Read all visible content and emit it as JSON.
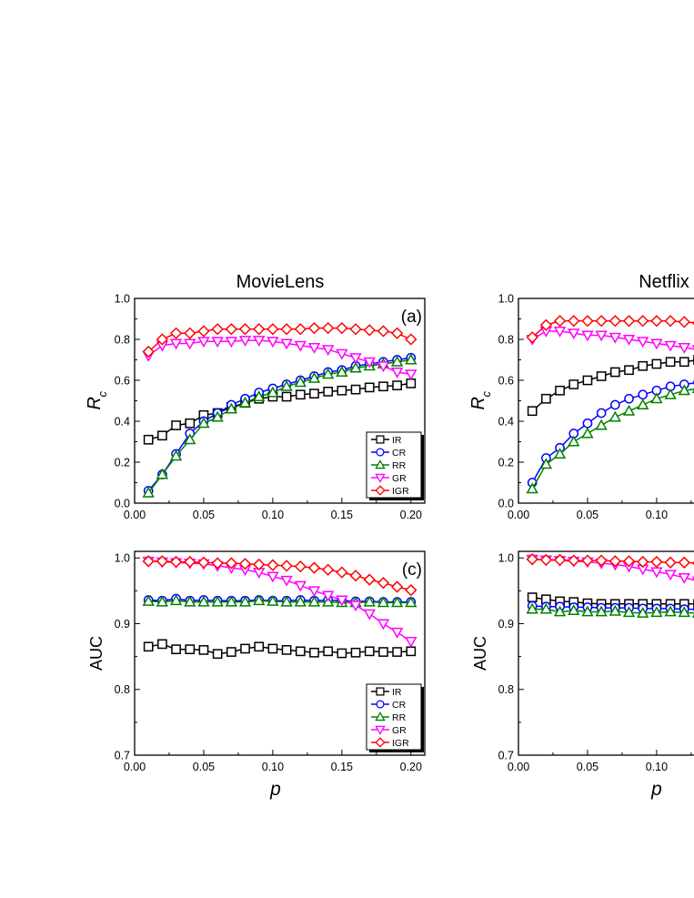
{
  "figure": {
    "columns": [
      {
        "title": "MovieLens"
      },
      {
        "title": "Netflix"
      }
    ],
    "x_axis_label": "p"
  },
  "series_style": {
    "IR": {
      "color": "#000000",
      "marker": "square"
    },
    "CR": {
      "color": "#0000ff",
      "marker": "circle"
    },
    "RR": {
      "color": "#008000",
      "marker": "triangle-up"
    },
    "GR": {
      "color": "#ff00ff",
      "marker": "triangle-down"
    },
    "IGR": {
      "color": "#ff0000",
      "marker": "diamond"
    }
  },
  "chart_data": [
    {
      "type": "line",
      "dataset": "MovieLens",
      "panel_label": "(a)",
      "xlabel": "p",
      "ylabel": "R_c",
      "xlim": [
        0.0,
        0.21
      ],
      "ylim": [
        0.0,
        1.0
      ],
      "x_ticks": [
        "0.00",
        "0.05",
        "0.10",
        "0.15",
        "0.20"
      ],
      "y_ticks": [
        "0.0",
        "0.2",
        "0.4",
        "0.6",
        "0.8",
        "1.0"
      ],
      "legend": [
        "IR",
        "CR",
        "RR",
        "GR",
        "IGR"
      ],
      "legend_position": "bottom-right",
      "x": [
        0.01,
        0.02,
        0.03,
        0.04,
        0.05,
        0.06,
        0.07,
        0.08,
        0.09,
        0.1,
        0.11,
        0.12,
        0.13,
        0.14,
        0.15,
        0.16,
        0.17,
        0.18,
        0.19,
        0.2
      ],
      "series": [
        {
          "name": "IR",
          "values": [
            0.31,
            0.33,
            0.38,
            0.39,
            0.43,
            0.44,
            0.47,
            0.49,
            0.51,
            0.52,
            0.52,
            0.53,
            0.535,
            0.545,
            0.55,
            0.555,
            0.565,
            0.57,
            0.575,
            0.585
          ]
        },
        {
          "name": "CR",
          "values": [
            0.06,
            0.14,
            0.24,
            0.34,
            0.4,
            0.44,
            0.48,
            0.51,
            0.54,
            0.56,
            0.58,
            0.6,
            0.62,
            0.64,
            0.65,
            0.67,
            0.68,
            0.69,
            0.7,
            0.71
          ]
        },
        {
          "name": "RR",
          "values": [
            0.05,
            0.14,
            0.23,
            0.31,
            0.39,
            0.42,
            0.46,
            0.49,
            0.52,
            0.54,
            0.57,
            0.59,
            0.61,
            0.63,
            0.64,
            0.66,
            0.67,
            0.68,
            0.69,
            0.7
          ]
        },
        {
          "name": "GR",
          "values": [
            0.72,
            0.77,
            0.78,
            0.78,
            0.79,
            0.79,
            0.79,
            0.795,
            0.795,
            0.79,
            0.78,
            0.77,
            0.76,
            0.75,
            0.73,
            0.71,
            0.69,
            0.67,
            0.64,
            0.63
          ]
        },
        {
          "name": "IGR",
          "values": [
            0.74,
            0.8,
            0.83,
            0.83,
            0.84,
            0.85,
            0.85,
            0.85,
            0.85,
            0.85,
            0.85,
            0.85,
            0.855,
            0.855,
            0.855,
            0.85,
            0.845,
            0.84,
            0.83,
            0.8
          ]
        }
      ]
    },
    {
      "type": "line",
      "dataset": "MovieLens",
      "panel_label": "(c)",
      "xlabel": "p",
      "ylabel": "AUC",
      "xlim": [
        0.0,
        0.21
      ],
      "ylim": [
        0.7,
        1.01
      ],
      "x_ticks": [
        "0.00",
        "0.05",
        "0.10",
        "0.15",
        "0.20"
      ],
      "y_ticks": [
        "0.7",
        "0.8",
        "0.9",
        "1.0"
      ],
      "legend": [
        "IR",
        "CR",
        "RR",
        "GR",
        "IGR"
      ],
      "legend_position": "bottom-right",
      "x": [
        0.01,
        0.02,
        0.03,
        0.04,
        0.05,
        0.06,
        0.07,
        0.08,
        0.09,
        0.1,
        0.11,
        0.12,
        0.13,
        0.14,
        0.15,
        0.16,
        0.17,
        0.18,
        0.19,
        0.2
      ],
      "series": [
        {
          "name": "IR",
          "values": [
            0.865,
            0.869,
            0.861,
            0.861,
            0.86,
            0.854,
            0.857,
            0.862,
            0.865,
            0.862,
            0.86,
            0.858,
            0.856,
            0.858,
            0.855,
            0.856,
            0.858,
            0.857,
            0.857,
            0.858
          ]
        },
        {
          "name": "CR",
          "values": [
            0.936,
            0.935,
            0.938,
            0.935,
            0.936,
            0.935,
            0.935,
            0.935,
            0.936,
            0.935,
            0.935,
            0.936,
            0.935,
            0.936,
            0.935,
            0.934,
            0.934,
            0.933,
            0.933,
            0.933
          ]
        },
        {
          "name": "RR",
          "values": [
            0.934,
            0.933,
            0.935,
            0.933,
            0.933,
            0.933,
            0.933,
            0.933,
            0.935,
            0.934,
            0.933,
            0.933,
            0.933,
            0.933,
            0.932,
            0.932,
            0.933,
            0.932,
            0.932,
            0.932
          ]
        },
        {
          "name": "GR",
          "values": [
            0.995,
            0.994,
            0.993,
            0.992,
            0.991,
            0.988,
            0.985,
            0.982,
            0.978,
            0.972,
            0.966,
            0.958,
            0.95,
            0.943,
            0.936,
            0.928,
            0.915,
            0.9,
            0.887,
            0.873
          ]
        },
        {
          "name": "IGR",
          "values": [
            0.995,
            0.995,
            0.994,
            0.994,
            0.993,
            0.992,
            0.992,
            0.991,
            0.99,
            0.989,
            0.988,
            0.987,
            0.985,
            0.982,
            0.978,
            0.973,
            0.967,
            0.962,
            0.956,
            0.951
          ]
        }
      ]
    },
    {
      "type": "line",
      "dataset": "Netflix",
      "panel_label": "",
      "xlabel": "p",
      "ylabel": "R_c",
      "xlim": [
        0.0,
        0.21
      ],
      "ylim": [
        0.0,
        1.0
      ],
      "x_ticks": [
        "0.00",
        "0.05",
        "0.10"
      ],
      "y_ticks": [
        "0.0",
        "0.2",
        "0.4",
        "0.6",
        "0.8",
        "1.0"
      ],
      "x": [
        0.01,
        0.02,
        0.03,
        0.04,
        0.05,
        0.06,
        0.07,
        0.08,
        0.09,
        0.1,
        0.11,
        0.12,
        0.13
      ],
      "series": [
        {
          "name": "IR",
          "values": [
            0.45,
            0.51,
            0.55,
            0.58,
            0.6,
            0.62,
            0.64,
            0.65,
            0.67,
            0.68,
            0.69,
            0.69,
            0.7
          ]
        },
        {
          "name": "CR",
          "values": [
            0.1,
            0.22,
            0.27,
            0.34,
            0.39,
            0.44,
            0.48,
            0.51,
            0.53,
            0.55,
            0.57,
            0.58,
            0.59
          ]
        },
        {
          "name": "RR",
          "values": [
            0.07,
            0.19,
            0.24,
            0.3,
            0.34,
            0.38,
            0.42,
            0.45,
            0.48,
            0.51,
            0.53,
            0.55,
            0.56
          ]
        },
        {
          "name": "GR",
          "values": [
            0.8,
            0.84,
            0.84,
            0.83,
            0.82,
            0.82,
            0.81,
            0.8,
            0.79,
            0.78,
            0.77,
            0.76,
            0.75
          ]
        },
        {
          "name": "IGR",
          "values": [
            0.81,
            0.87,
            0.89,
            0.89,
            0.89,
            0.89,
            0.89,
            0.89,
            0.89,
            0.89,
            0.89,
            0.885,
            0.88
          ]
        }
      ]
    },
    {
      "type": "line",
      "dataset": "Netflix",
      "panel_label": "",
      "xlabel": "p",
      "ylabel": "AUC",
      "xlim": [
        0.0,
        0.21
      ],
      "ylim": [
        0.7,
        1.01
      ],
      "x_ticks": [
        "0.00",
        "0.05",
        "0.10"
      ],
      "y_ticks": [
        "0.7",
        "0.8",
        "0.9",
        "1.0"
      ],
      "x": [
        0.01,
        0.02,
        0.03,
        0.04,
        0.05,
        0.06,
        0.07,
        0.08,
        0.09,
        0.1,
        0.11,
        0.12,
        0.13
      ],
      "series": [
        {
          "name": "IR",
          "values": [
            0.94,
            0.937,
            0.934,
            0.933,
            0.931,
            0.93,
            0.93,
            0.93,
            0.93,
            0.93,
            0.93,
            0.93,
            0.93
          ]
        },
        {
          "name": "CR",
          "values": [
            0.927,
            0.926,
            0.926,
            0.925,
            0.925,
            0.924,
            0.924,
            0.924,
            0.923,
            0.923,
            0.923,
            0.922,
            0.922
          ]
        },
        {
          "name": "RR",
          "values": [
            0.922,
            0.922,
            0.918,
            0.92,
            0.918,
            0.918,
            0.919,
            0.917,
            0.916,
            0.917,
            0.918,
            0.917,
            0.916
          ]
        },
        {
          "name": "GR",
          "values": [
            0.998,
            0.997,
            0.996,
            0.995,
            0.994,
            0.992,
            0.99,
            0.987,
            0.983,
            0.979,
            0.975,
            0.97,
            0.965
          ]
        },
        {
          "name": "IGR",
          "values": [
            0.998,
            0.997,
            0.997,
            0.996,
            0.996,
            0.996,
            0.995,
            0.995,
            0.994,
            0.994,
            0.993,
            0.993,
            0.992
          ]
        }
      ]
    }
  ]
}
